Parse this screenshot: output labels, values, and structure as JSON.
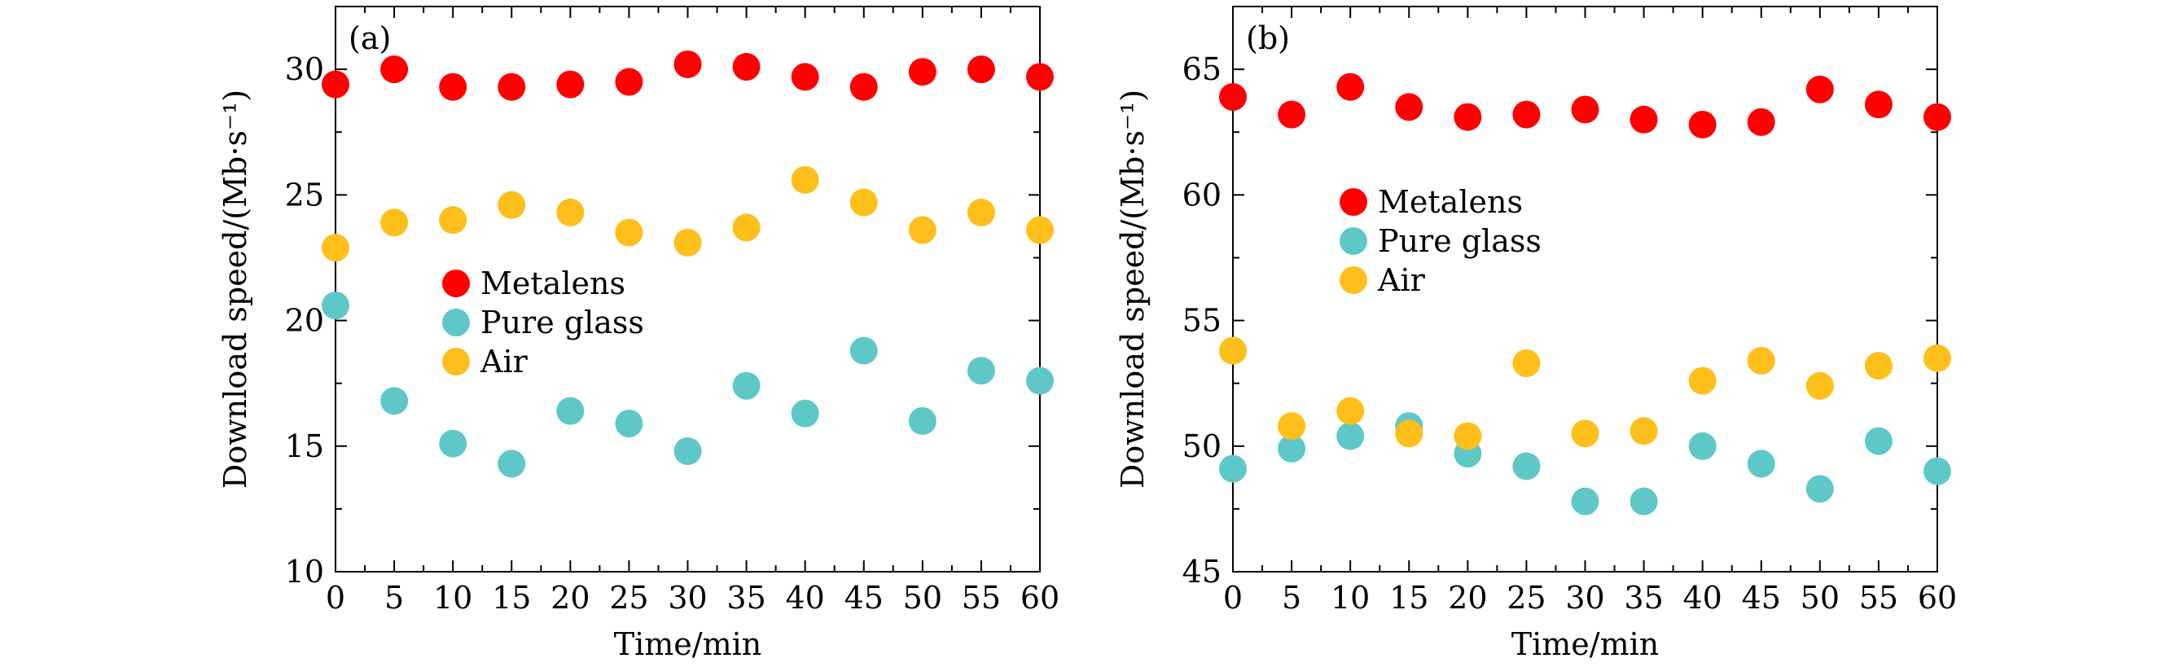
{
  "chart_data": [
    {
      "type": "scatter",
      "panel_label": "(a)",
      "xlabel": "Time/min",
      "ylabel": "Download speed/(Mb·s⁻¹)",
      "xlim": [
        0,
        60
      ],
      "ylim": [
        10,
        32.5
      ],
      "xticks": [
        "0",
        "5",
        "10",
        "15",
        "20",
        "25",
        "30",
        "35",
        "40",
        "45",
        "50",
        "55",
        "60"
      ],
      "yticks": [
        "10",
        "15",
        "20",
        "25",
        "30"
      ],
      "legend_position": "middle-left",
      "x": [
        0,
        5,
        10,
        15,
        20,
        25,
        30,
        35,
        40,
        45,
        50,
        55,
        60
      ],
      "series": [
        {
          "name": "Metalens",
          "color": "#ff0000",
          "values": [
            29.4,
            30.0,
            29.3,
            29.3,
            29.4,
            29.5,
            30.2,
            30.1,
            29.7,
            29.3,
            29.9,
            30.0,
            29.7
          ]
        },
        {
          "name": "Pure glass",
          "color": "#5ec8c8",
          "values": [
            20.6,
            16.8,
            15.1,
            14.3,
            16.4,
            15.9,
            14.8,
            17.4,
            16.3,
            18.8,
            16.0,
            18.0,
            17.6
          ]
        },
        {
          "name": "Air",
          "color": "#ffbf1a",
          "values": [
            22.9,
            23.9,
            24.0,
            24.6,
            24.3,
            23.5,
            23.1,
            23.7,
            25.6,
            24.7,
            23.6,
            24.3,
            23.6
          ]
        }
      ]
    },
    {
      "type": "scatter",
      "panel_label": "(b)",
      "xlabel": "Time/min",
      "ylabel": "Download speed/(Mb·s⁻¹)",
      "xlim": [
        0,
        60
      ],
      "ylim": [
        45,
        67.5
      ],
      "xticks": [
        "0",
        "5",
        "10",
        "15",
        "20",
        "25",
        "30",
        "35",
        "40",
        "45",
        "50",
        "55",
        "60"
      ],
      "yticks": [
        "45",
        "50",
        "55",
        "60",
        "65"
      ],
      "legend_position": "upper-middle-left",
      "x": [
        0,
        5,
        10,
        15,
        20,
        25,
        30,
        35,
        40,
        45,
        50,
        55,
        60
      ],
      "series": [
        {
          "name": "Metalens",
          "color": "#ff0000",
          "values": [
            63.9,
            63.2,
            64.3,
            63.5,
            63.1,
            63.2,
            63.4,
            63.0,
            62.8,
            62.9,
            64.2,
            63.6,
            63.1
          ]
        },
        {
          "name": "Pure glass",
          "color": "#5ec8c8",
          "values": [
            49.1,
            49.9,
            50.4,
            50.8,
            49.7,
            49.2,
            47.8,
            47.8,
            50.0,
            49.3,
            48.3,
            50.2,
            49.0
          ]
        },
        {
          "name": "Air",
          "color": "#ffbf1a",
          "values": [
            53.8,
            50.8,
            51.4,
            50.5,
            50.4,
            53.3,
            50.5,
            50.6,
            52.6,
            53.4,
            52.4,
            53.2,
            53.5
          ]
        }
      ]
    }
  ]
}
